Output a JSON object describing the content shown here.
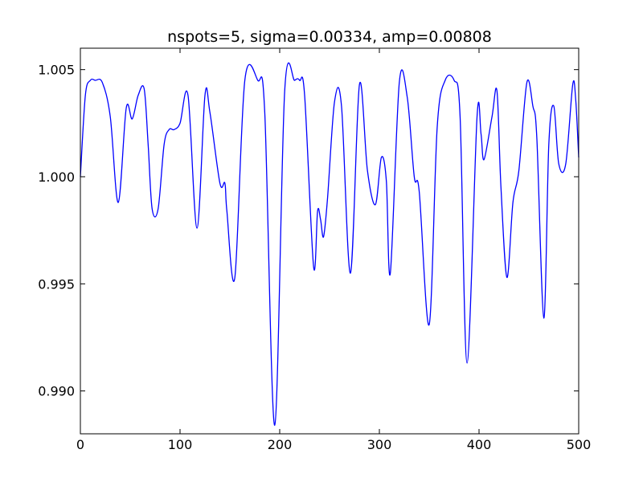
{
  "chart_data": {
    "type": "line",
    "title": "nspots=5, sigma=0.00334, amp=0.00808",
    "xlabel": "",
    "ylabel": "",
    "xlim": [
      0,
      500
    ],
    "ylim": [
      0.988,
      1.006
    ],
    "xticks": [
      0,
      100,
      200,
      300,
      400,
      500
    ],
    "xtick_labels": [
      "0",
      "100",
      "200",
      "300",
      "400",
      "500"
    ],
    "yticks": [
      0.99,
      0.995,
      1.0,
      1.005
    ],
    "ytick_labels": [
      "0.990",
      "0.995",
      "1.000",
      "1.005"
    ],
    "grid": false,
    "series": [
      {
        "color": "#0000ff",
        "x": [
          0,
          5,
          10,
          15,
          22,
          30,
          38,
          46,
          52,
          58,
          64,
          68,
          72,
          78,
          84,
          89,
          94,
          100,
          108,
          117,
          125,
          130,
          140,
          145,
          147,
          155,
          165,
          178,
          185,
          195,
          205,
          215,
          220,
          225,
          234,
          238,
          241,
          244,
          248,
          255,
          262,
          271,
          280,
          288,
          296,
          302,
          307,
          311,
          320,
          328,
          335,
          340,
          350,
          358,
          366,
          375,
          381,
          388,
          398,
          402,
          405,
          413,
          418,
          422,
          428,
          434,
          440,
          448,
          454,
          458,
          465,
          470,
          475,
          480,
          487,
          494,
          497,
          500
        ],
        "y": [
          1.0,
          1.0038,
          1.0045,
          1.0045,
          1.0044,
          1.0028,
          0.9988,
          1.0032,
          1.0027,
          1.0038,
          1.0041,
          1.0015,
          0.9985,
          0.9985,
          1.0015,
          1.0022,
          1.0022,
          1.0025,
          1.0038,
          0.9976,
          1.0038,
          1.003,
          0.9997,
          0.9997,
          0.9984,
          0.9953,
          1.0045,
          1.0045,
          1.003,
          0.9884,
          1.004,
          1.0045,
          1.0045,
          1.0038,
          0.9958,
          0.9984,
          0.998,
          0.9972,
          0.999,
          1.0035,
          1.0033,
          0.9955,
          1.0043,
          1.0003,
          0.9987,
          1.0009,
          0.9998,
          0.9955,
          1.0044,
          1.0037,
          1.0,
          0.9993,
          0.9931,
          1.0023,
          1.0045,
          1.0045,
          1.0028,
          0.9913,
          1.0028,
          1.002,
          1.0008,
          1.0028,
          1.004,
          0.9995,
          0.9953,
          0.9988,
          1.0003,
          1.0044,
          1.0033,
          1.0018,
          0.9934,
          1.0015,
          1.0033,
          1.0006,
          1.0006,
          1.0043,
          1.0036,
          1.0009
        ]
      }
    ]
  }
}
